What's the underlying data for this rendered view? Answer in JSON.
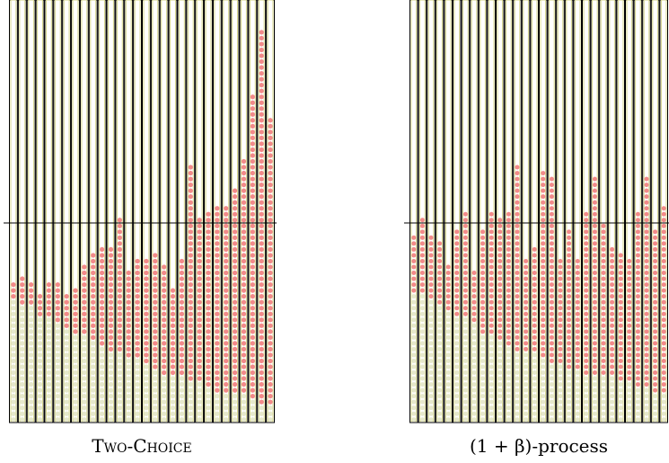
{
  "chart_data": [
    {
      "type": "balls-in-bins",
      "title": "Two-Choice",
      "ylim": [
        0,
        72
      ],
      "reference_line": 34,
      "series": [
        {
          "color": "#e6e8cc",
          "values": [
            21,
            20,
            20,
            18,
            18,
            17,
            16,
            15,
            15,
            14,
            13,
            12,
            12,
            11,
            11,
            10,
            9,
            8,
            8,
            8,
            7,
            7,
            6,
            5,
            5,
            5,
            5,
            4,
            3,
            3
          ]
        },
        {
          "color": "#f28a8a",
          "values": [
            3,
            5,
            4,
            4,
            6,
            7,
            6,
            8,
            12,
            15,
            17,
            18,
            23,
            15,
            17,
            18,
            20,
            19,
            15,
            20,
            37,
            28,
            30,
            32,
            32,
            35,
            40,
            52,
            64,
            49
          ]
        }
      ]
    },
    {
      "type": "balls-in-bins",
      "title": "(1 + β)-process",
      "ylim": [
        0,
        72
      ],
      "reference_line": 34,
      "series": [
        {
          "color": "#e6e8cc",
          "values": [
            22,
            22,
            21,
            20,
            19,
            18,
            18,
            17,
            15,
            15,
            14,
            13,
            12,
            12,
            12,
            11,
            10,
            10,
            9,
            9,
            8,
            8,
            8,
            8,
            7,
            7,
            6,
            6,
            5,
            5
          ]
        },
        {
          "color": "#f28a8a",
          "values": [
            10,
            13,
            11,
            11,
            8,
            15,
            18,
            9,
            18,
            21,
            21,
            23,
            32,
            16,
            18,
            32,
            32,
            18,
            24,
            19,
            28,
            34,
            26,
            22,
            22,
            21,
            30,
            36,
            28,
            32
          ]
        }
      ]
    }
  ]
}
